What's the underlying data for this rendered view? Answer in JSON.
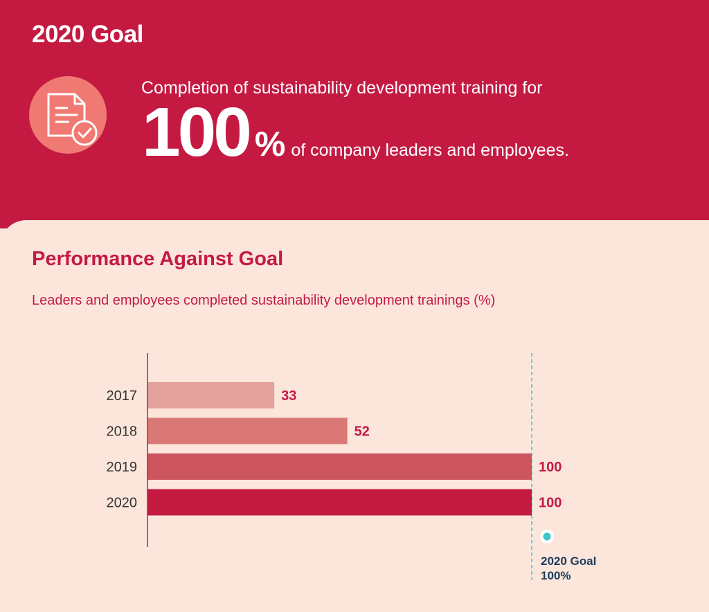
{
  "header": {
    "goal_title": "2020 Goal",
    "intro": "Completion of sustainability development training for",
    "big_number": "100",
    "big_unit": "%",
    "rest": "of company leaders and employees."
  },
  "icon": "document-check-icon",
  "colors": {
    "brand": "#c41a42",
    "background": "#fce6dc",
    "icon_circle": "#f07a73",
    "goal_dot": "#3ec4cc",
    "goal_text": "#1d3b5c"
  },
  "chart_data": {
    "type": "bar",
    "orientation": "horizontal",
    "title": "Performance Against Goal",
    "subtitle": "Leaders and employees completed sustainability development trainings (%)",
    "categories": [
      "2017",
      "2018",
      "2019",
      "2020"
    ],
    "values": [
      33,
      52,
      100,
      100
    ],
    "bar_colors": [
      "#e3a19c",
      "#d97876",
      "#cc555f",
      "#c41a42"
    ],
    "xlim": [
      0,
      100
    ],
    "goal": {
      "value": 100,
      "label_line1": "2020 Goal",
      "label_line2": "100%"
    }
  }
}
